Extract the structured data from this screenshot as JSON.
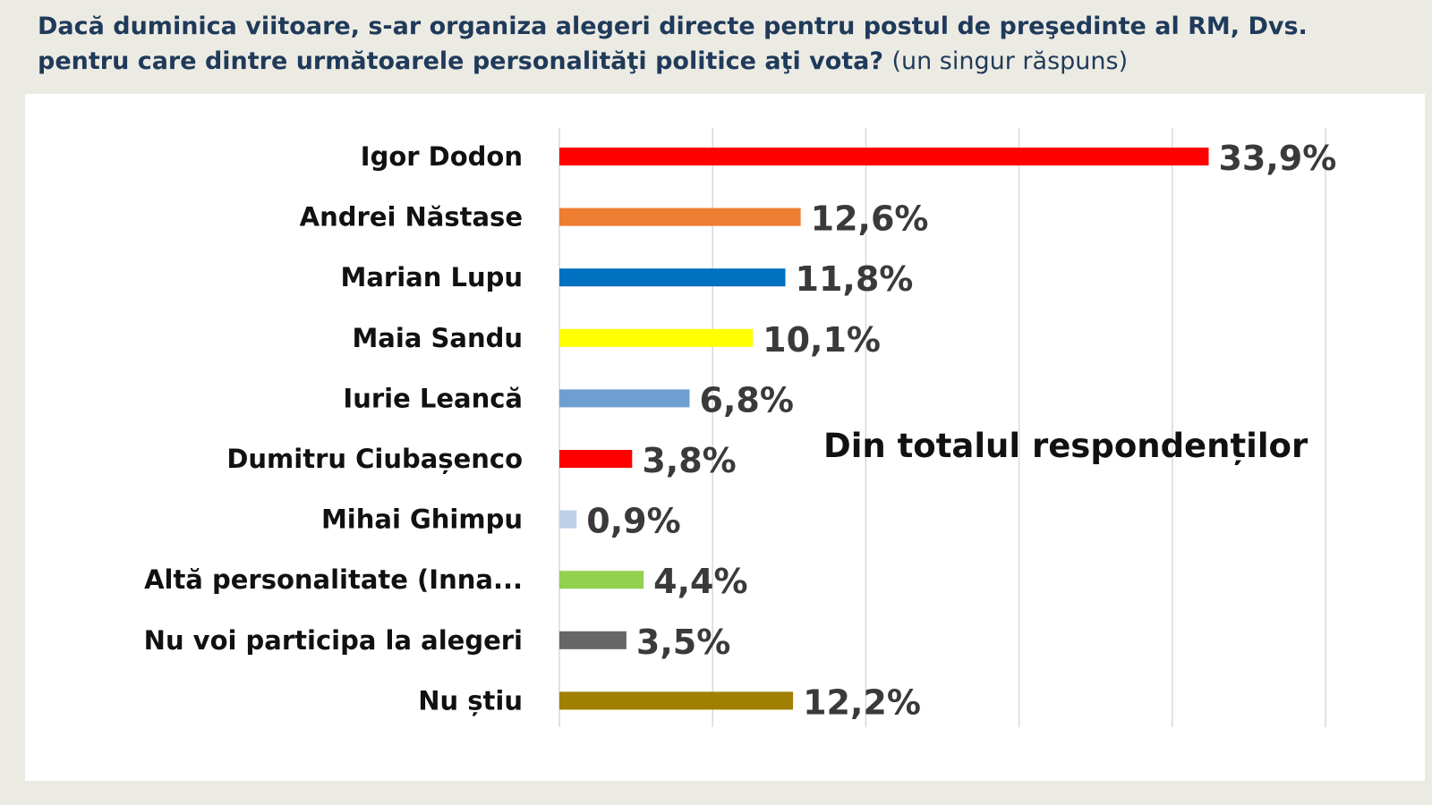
{
  "header": {
    "question": "Dacă duminica viitoare, s-ar organiza alegeri directe pentru postul de preşedinte al RM, Dvs. pentru care dintre următoarele personalităţi politice aţi vota?",
    "note": "(un singur răspuns)"
  },
  "chart_data": {
    "type": "bar",
    "orientation": "horizontal",
    "annotation": "Din totalul respondenților",
    "grid": true,
    "xlim": [
      0,
      40
    ],
    "categories": [
      "Igor Dodon",
      "Andrei Năstase",
      "Marian Lupu",
      "Maia Sandu",
      "Iurie Leancă",
      "Dumitru Ciubașenco",
      "Mihai Ghimpu",
      "Altă personalitate (Inna...",
      "Nu voi participa la alegeri",
      "Nu știu"
    ],
    "values": [
      33.9,
      12.6,
      11.8,
      10.1,
      6.8,
      3.8,
      0.9,
      4.4,
      3.5,
      12.2
    ],
    "value_labels": [
      "33,9%",
      "12,6%",
      "11,8%",
      "10,1%",
      "6,8%",
      "3,8%",
      "0,9%",
      "4,4%",
      "3,5%",
      "12,2%"
    ],
    "colors": [
      "#ff0000",
      "#ed7d31",
      "#0070c0",
      "#ffff00",
      "#6f9fd0",
      "#ff0000",
      "#bcd0e8",
      "#92d050",
      "#666666",
      "#a08000"
    ]
  }
}
